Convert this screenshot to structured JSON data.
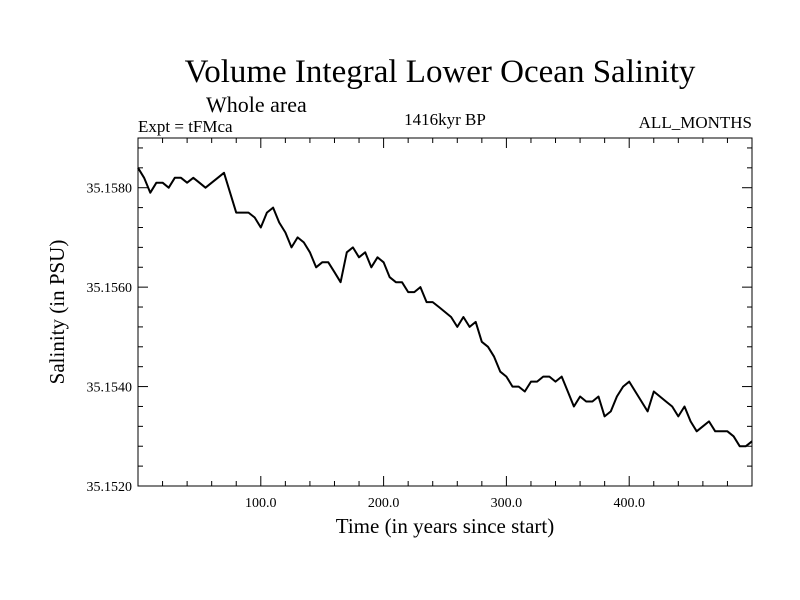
{
  "chart_data": {
    "type": "line",
    "title": "Volume Integral Lower Ocean Salinity",
    "subtitle": "Whole area",
    "experiment": "Expt = tFMca",
    "period": "1416kyr BP",
    "months": "ALL_MONTHS",
    "xlabel": "Time (in years since start)",
    "ylabel": "Salinity (in PSU)",
    "xlim": [
      0,
      500
    ],
    "ylim": [
      35.152,
      35.159
    ],
    "x_ticks": [
      100,
      200,
      300,
      400
    ],
    "x_tick_labels": [
      "100.0",
      "200.0",
      "300.0",
      "400.0"
    ],
    "y_ticks": [
      35.152,
      35.154,
      35.156,
      35.158
    ],
    "y_tick_labels": [
      "35.1520",
      "35.1540",
      "35.1560",
      "35.1580"
    ],
    "grid": false,
    "series": [
      {
        "name": "Salinity",
        "color": "#000000",
        "x": [
          0,
          5,
          10,
          15,
          20,
          25,
          30,
          35,
          40,
          45,
          50,
          55,
          60,
          65,
          70,
          75,
          80,
          85,
          90,
          95,
          100,
          105,
          110,
          115,
          120,
          125,
          130,
          135,
          140,
          145,
          150,
          155,
          160,
          165,
          170,
          175,
          180,
          185,
          190,
          195,
          200,
          205,
          210,
          215,
          220,
          225,
          230,
          235,
          240,
          245,
          250,
          255,
          260,
          265,
          270,
          275,
          280,
          285,
          290,
          295,
          300,
          305,
          310,
          315,
          320,
          325,
          330,
          335,
          340,
          345,
          350,
          355,
          360,
          365,
          370,
          375,
          380,
          385,
          390,
          395,
          400,
          405,
          410,
          415,
          420,
          425,
          430,
          435,
          440,
          445,
          450,
          455,
          460,
          465,
          470,
          475,
          480,
          485,
          490,
          495,
          500
        ],
        "values": [
          35.1584,
          35.1582,
          35.1579,
          35.1581,
          35.1581,
          35.158,
          35.1582,
          35.1582,
          35.1581,
          35.1582,
          35.1581,
          35.158,
          35.1581,
          35.1582,
          35.1583,
          35.1579,
          35.1575,
          35.1575,
          35.1575,
          35.1574,
          35.1572,
          35.1575,
          35.1576,
          35.1573,
          35.1571,
          35.1568,
          35.157,
          35.1569,
          35.1567,
          35.1564,
          35.1565,
          35.1565,
          35.1563,
          35.1561,
          35.1567,
          35.1568,
          35.1566,
          35.1567,
          35.1564,
          35.1566,
          35.1565,
          35.1562,
          35.1561,
          35.1561,
          35.1559,
          35.1559,
          35.156,
          35.1557,
          35.1557,
          35.1556,
          35.1555,
          35.1554,
          35.1552,
          35.1554,
          35.1552,
          35.1553,
          35.1549,
          35.1548,
          35.1546,
          35.1543,
          35.1542,
          35.154,
          35.154,
          35.1539,
          35.1541,
          35.1541,
          35.1542,
          35.1542,
          35.1541,
          35.1542,
          35.1539,
          35.1536,
          35.1538,
          35.1537,
          35.1537,
          35.1538,
          35.1534,
          35.1535,
          35.1538,
          35.154,
          35.1541,
          35.1539,
          35.1537,
          35.1535,
          35.1539,
          35.1538,
          35.1537,
          35.1536,
          35.1534,
          35.1536,
          35.1533,
          35.1531,
          35.1532,
          35.1533,
          35.1531,
          35.1531,
          35.1531,
          35.153,
          35.1528,
          35.1528,
          35.1529
        ]
      }
    ]
  }
}
